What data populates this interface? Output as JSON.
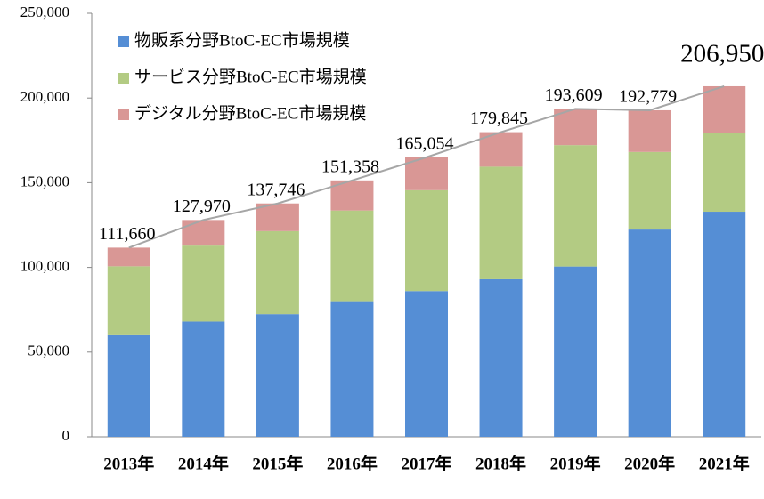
{
  "chart_data": {
    "type": "bar",
    "stacked": true,
    "categories": [
      "2013年",
      "2014年",
      "2015年",
      "2016年",
      "2017年",
      "2018年",
      "2019年",
      "2020年",
      "2021年"
    ],
    "series": [
      {
        "name": "物販系分野BtoC-EC市場規模",
        "color": "#558ed5",
        "values": [
          59931,
          68043,
          72398,
          80043,
          86008,
          92992,
          100515,
          122333,
          132865
        ]
      },
      {
        "name": "サービス分野BtoC-EC市場規模",
        "color": "#b3cb83",
        "values": [
          40721,
          44816,
          49014,
          53532,
          59568,
          66471,
          71672,
          45832,
          46424
        ]
      },
      {
        "name": "デジタル分野BtoC-EC市場規模",
        "color": "#d99795",
        "values": [
          11008,
          15111,
          16334,
          17782,
          19478,
          20382,
          21422,
          24614,
          27661
        ]
      }
    ],
    "totals": {
      "color": "#a6a6a6",
      "values": [
        111660,
        127970,
        137746,
        151358,
        165054,
        179845,
        193609,
        192779,
        206950
      ],
      "value_labels": [
        "111,660",
        "127,970",
        "137,746",
        "151,358",
        "165,054",
        "179,845",
        "193,609",
        "192,779",
        "206,950"
      ]
    },
    "ylim": [
      0,
      250000
    ],
    "yticks": [
      0,
      {
        "value": 50000,
        "label": "50,000"
      },
      {
        "value": 100000,
        "label": "100,000"
      },
      {
        "value": 150000,
        "label": "150,000"
      },
      {
        "value": 200000,
        "label": "200,000"
      },
      {
        "value": 250000,
        "label": "250,000"
      }
    ],
    "grid": false,
    "legend": "top-left"
  }
}
